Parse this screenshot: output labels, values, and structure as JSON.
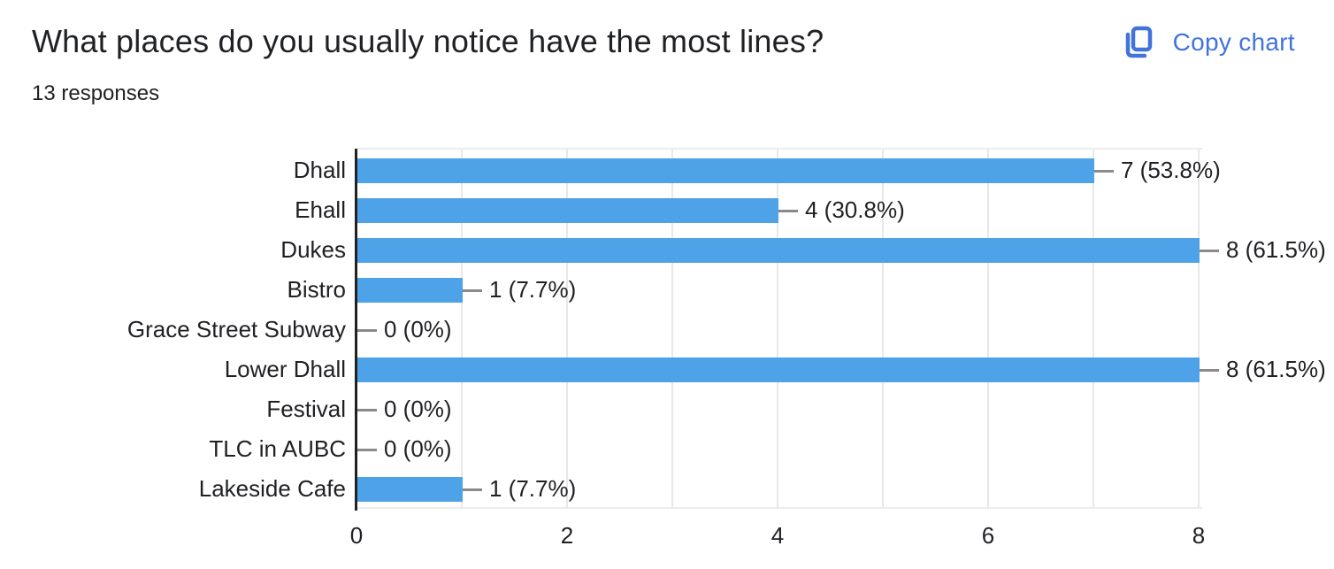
{
  "header": {
    "title": "What places do you usually notice have the most lines?",
    "responses": "13 responses",
    "copy_chart_label": "Copy chart"
  },
  "icons": {
    "copy_icon": "copy-chart-icon"
  },
  "colors": {
    "bar": "#4DA2E8",
    "accent_blue": "#4273DB",
    "grid": "#e8e8e8",
    "axis": "#212121",
    "callout": "#8a8a8a",
    "text": "#202124"
  },
  "chart_data": {
    "type": "bar",
    "orientation": "horizontal",
    "title": "What places do you usually notice have the most lines?",
    "subtitle": "13 responses",
    "categories": [
      "Dhall",
      "Ehall",
      "Dukes",
      "Bistro",
      "Grace Street Subway",
      "Lower Dhall",
      "Festival",
      "TLC in AUBC",
      "Lakeside Cafe"
    ],
    "series": [
      {
        "name": "responses",
        "values": [
          7,
          4,
          8,
          1,
          0,
          8,
          0,
          0,
          1
        ]
      }
    ],
    "value_labels": [
      "7 (53.8%)",
      "4 (30.8%)",
      "8 (61.5%)",
      "1 (7.7%)",
      "0 (0%)",
      "8 (61.5%)",
      "0 (0%)",
      "0 (0%)",
      "1 (7.7%)"
    ],
    "x_ticks": [
      "0",
      "2",
      "4",
      "6",
      "8"
    ],
    "xlim": [
      0,
      8
    ],
    "xlabel": "",
    "ylabel": "",
    "grid": true,
    "legend": "none"
  }
}
